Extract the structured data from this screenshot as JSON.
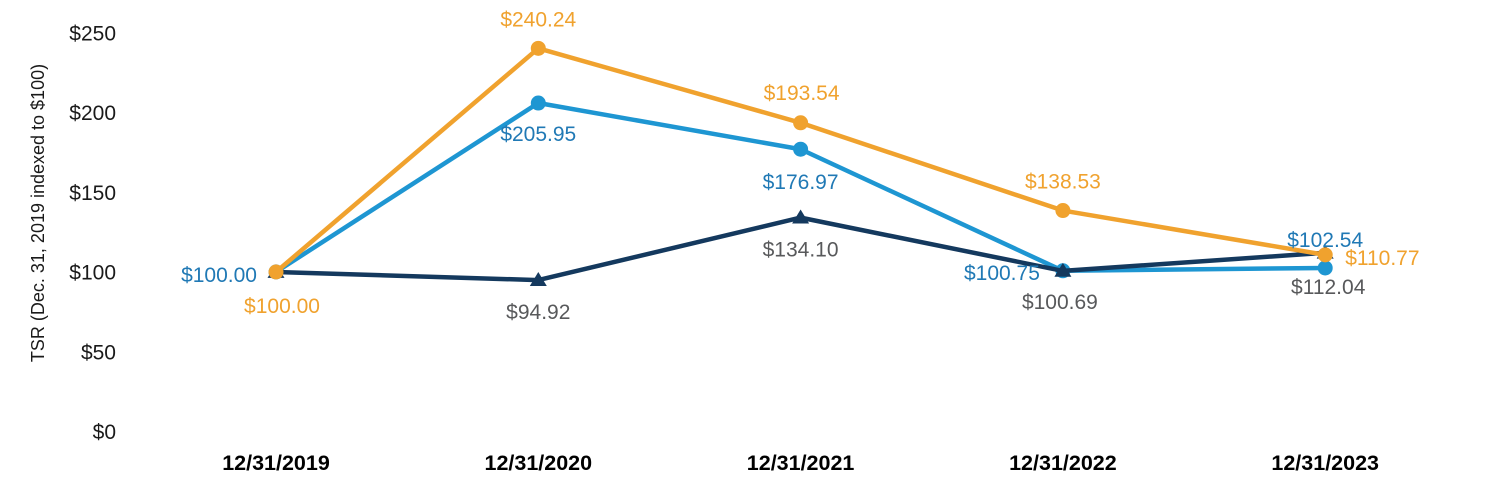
{
  "chart_data": {
    "type": "line",
    "title": "",
    "xlabel": "",
    "ylabel": "TSR (Dec. 31, 2019 indexed to $100)",
    "categories": [
      "12/31/2019",
      "12/31/2020",
      "12/31/2021",
      "12/31/2022",
      "12/31/2023"
    ],
    "y_ticks": [
      {
        "value": 0,
        "label": "$0"
      },
      {
        "value": 50,
        "label": "$50"
      },
      {
        "value": 100,
        "label": "$100"
      },
      {
        "value": 150,
        "label": "$150"
      },
      {
        "value": 200,
        "label": "$200"
      },
      {
        "value": 250,
        "label": "$250"
      }
    ],
    "ylim": [
      0,
      250
    ],
    "grid": false,
    "legend": "none",
    "series": [
      {
        "name": "orange",
        "marker": "circle",
        "color": "#F0A22E",
        "label_color": "#F0A22E",
        "values": [
          100.0,
          240.24,
          193.54,
          138.53,
          110.77
        ],
        "labels": [
          "$100.00",
          "$240.24",
          "$193.54",
          "$138.53",
          "$110.77"
        ]
      },
      {
        "name": "light-blue",
        "marker": "circle",
        "color": "#1E96D2",
        "label_color": "#2079B5",
        "values": [
          100.0,
          205.95,
          176.97,
          100.75,
          102.54
        ],
        "labels": [
          "$100.00",
          "$205.95",
          "$176.97",
          "$100.75",
          "$102.54"
        ]
      },
      {
        "name": "dark-navy",
        "marker": "triangle",
        "color": "#14395E",
        "label_color": "#58595B",
        "values": [
          100.0,
          94.92,
          134.1,
          100.69,
          112.04
        ],
        "labels": [
          null,
          "$94.92",
          "$134.10",
          "$100.69",
          "$112.04"
        ]
      }
    ]
  }
}
